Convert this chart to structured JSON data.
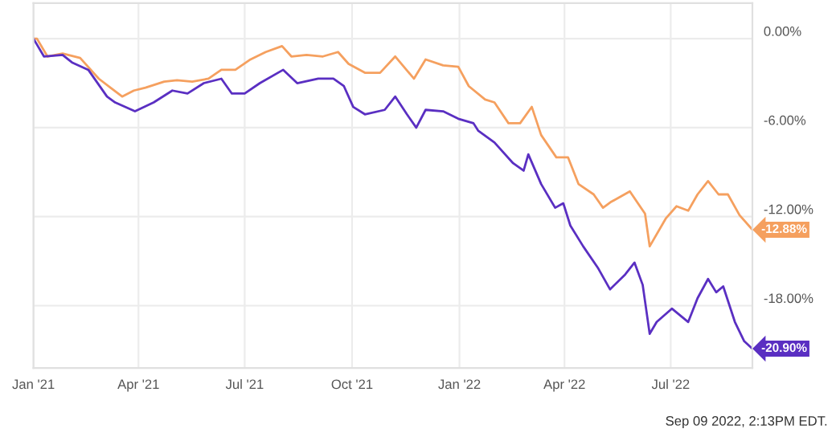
{
  "chart_data": {
    "type": "line",
    "series": [
      {
        "color": "#f5a05f",
        "x": [
          "2021-01-01",
          "2021-01-04",
          "2021-01-13",
          "2021-01-26",
          "2021-02-10",
          "2021-02-26",
          "2021-03-08",
          "2021-03-18",
          "2021-03-28",
          "2021-04-07",
          "2021-04-23",
          "2021-05-04",
          "2021-05-17",
          "2021-05-31",
          "2021-06-11",
          "2021-06-23",
          "2021-07-06",
          "2021-07-19",
          "2021-08-02",
          "2021-08-10",
          "2021-08-23",
          "2021-09-06",
          "2021-09-19",
          "2021-09-28",
          "2021-10-12",
          "2021-10-25",
          "2021-11-07",
          "2021-11-23",
          "2021-12-03",
          "2021-12-18",
          "2021-12-31",
          "2022-01-09",
          "2022-01-23",
          "2022-01-31",
          "2022-02-12",
          "2022-02-22",
          "2022-03-04",
          "2022-03-12",
          "2022-03-25",
          "2022-04-04",
          "2022-04-13",
          "2022-04-26",
          "2022-05-04",
          "2022-05-11",
          "2022-05-27",
          "2022-06-09",
          "2022-06-13",
          "2022-06-27",
          "2022-07-06",
          "2022-07-16",
          "2022-07-24",
          "2022-08-02",
          "2022-08-11",
          "2022-08-19",
          "2022-08-29",
          "2022-09-09"
        ],
        "values": [
          0,
          0,
          -1.2,
          -1.0,
          -1.3,
          -2.7,
          -3.3,
          -3.9,
          -3.5,
          -3.3,
          -2.9,
          -2.8,
          -2.9,
          -2.7,
          -2.1,
          -2.1,
          -1.4,
          -0.9,
          -0.5,
          -1.2,
          -1.1,
          -1.2,
          -0.9,
          -1.7,
          -2.3,
          -2.3,
          -1.2,
          -2.7,
          -1.4,
          -1.8,
          -1.9,
          -3.2,
          -4.1,
          -4.3,
          -5.7,
          -5.7,
          -4.6,
          -6.5,
          -8.0,
          -8.0,
          -9.8,
          -10.5,
          -11.4,
          -11.0,
          -10.3,
          -11.8,
          -14.0,
          -12.1,
          -11.3,
          -11.6,
          -10.5,
          -9.6,
          -10.5,
          -10.5,
          -11.9,
          -12.88
        ]
      },
      {
        "color": "#5a2fc2",
        "x": [
          "2021-01-01",
          "2021-01-10",
          "2021-01-26",
          "2021-02-03",
          "2021-02-17",
          "2021-03-05",
          "2021-03-12",
          "2021-03-29",
          "2021-04-14",
          "2021-04-30",
          "2021-05-13",
          "2021-05-27",
          "2021-06-11",
          "2021-06-20",
          "2021-07-01",
          "2021-07-14",
          "2021-08-03",
          "2021-08-15",
          "2021-09-02",
          "2021-09-15",
          "2021-09-24",
          "2021-10-02",
          "2021-10-12",
          "2021-10-29",
          "2021-11-07",
          "2021-11-17",
          "2021-11-25",
          "2021-12-03",
          "2021-12-18",
          "2021-12-31",
          "2022-01-13",
          "2022-01-17",
          "2022-01-31",
          "2022-02-16",
          "2022-02-25",
          "2022-03-01",
          "2022-03-12",
          "2022-03-24",
          "2022-03-31",
          "2022-04-06",
          "2022-04-17",
          "2022-04-30",
          "2022-05-10",
          "2022-05-23",
          "2022-05-31",
          "2022-06-07",
          "2022-06-13",
          "2022-06-19",
          "2022-07-02",
          "2022-07-16",
          "2022-07-24",
          "2022-08-02",
          "2022-08-09",
          "2022-08-15",
          "2022-08-25",
          "2022-09-02",
          "2022-09-09"
        ],
        "values": [
          0,
          -1.2,
          -1.1,
          -1.6,
          -2.1,
          -3.9,
          -4.3,
          -4.9,
          -4.3,
          -3.5,
          -3.7,
          -3.0,
          -2.7,
          -3.7,
          -3.7,
          -3.0,
          -2.1,
          -3.0,
          -2.7,
          -2.7,
          -3.2,
          -4.6,
          -5.1,
          -4.8,
          -3.9,
          -5.1,
          -6.0,
          -4.8,
          -4.9,
          -5.4,
          -5.7,
          -6.2,
          -7.0,
          -8.4,
          -8.9,
          -7.8,
          -9.8,
          -11.4,
          -11.1,
          -12.6,
          -14.0,
          -15.5,
          -16.9,
          -15.9,
          -15.1,
          -16.6,
          -19.9,
          -19.1,
          -18.2,
          -19.1,
          -17.5,
          -16.2,
          -17.1,
          -16.7,
          -19.1,
          -20.4,
          -20.9
        ]
      }
    ],
    "xlim": [
      "2021-01-01",
      "2022-09-09"
    ],
    "xticks": [
      {
        "value": "2021-01-01",
        "label": "Jan '21"
      },
      {
        "value": "2021-04-01",
        "label": "Apr '21"
      },
      {
        "value": "2021-07-01",
        "label": "Jul '21"
      },
      {
        "value": "2021-10-01",
        "label": "Oct '21"
      },
      {
        "value": "2022-01-01",
        "label": "Jan '22"
      },
      {
        "value": "2022-04-01",
        "label": "Apr '22"
      },
      {
        "value": "2022-07-01",
        "label": "Jul '22"
      }
    ],
    "ylim": [
      -22.2,
      2.4
    ],
    "yticks": [
      {
        "value": 0,
        "label": "0.00%"
      },
      {
        "value": -6,
        "label": "-6.00%"
      },
      {
        "value": -12,
        "label": "-12.00%"
      },
      {
        "value": -18,
        "label": "-18.00%"
      }
    ],
    "grid": true,
    "line_style": "solid",
    "annotations": [
      {
        "text": "-12.88%",
        "x": "2022-09-09",
        "y": -12.88
      },
      {
        "text": "-20.90%",
        "x": "2022-09-09",
        "y": -20.9
      },
      "Sep 09 2022, 2:13PM EDT."
    ]
  }
}
